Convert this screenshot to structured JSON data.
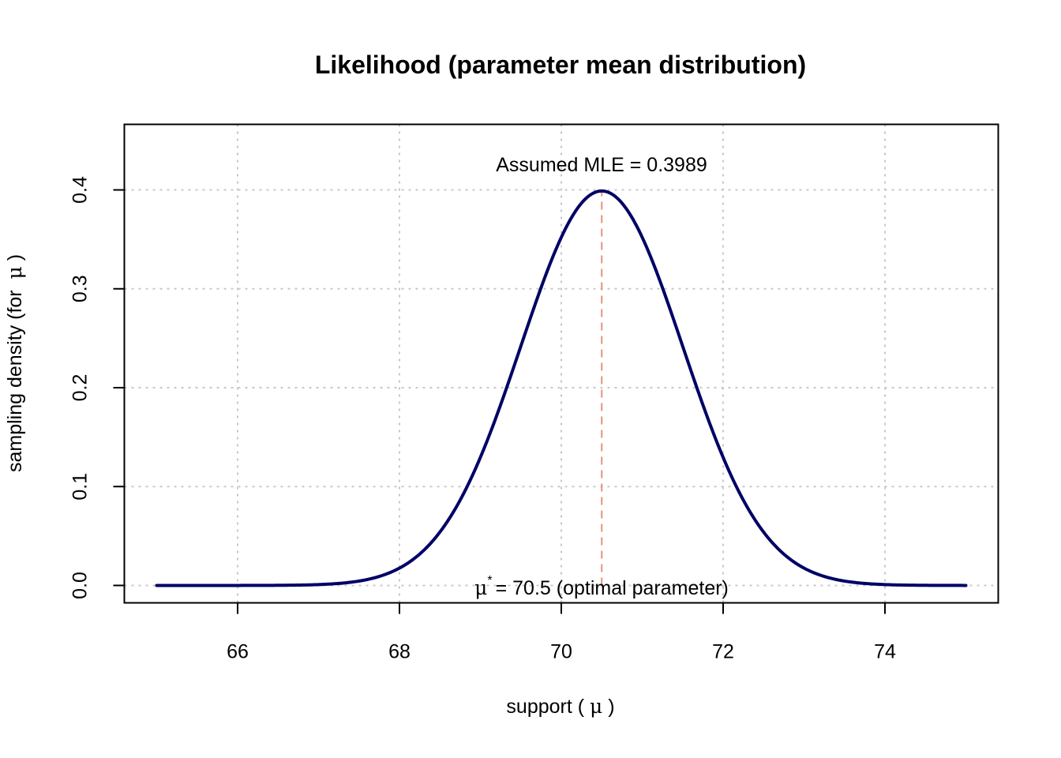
{
  "chart_data": {
    "type": "line",
    "title": "Likelihood (parameter mean distribution)",
    "xlabel": {
      "prefix": "support ( ",
      "symbol": "μ",
      "suffix": " )"
    },
    "ylabel": {
      "prefix": "sampling density (for  ",
      "symbol": "μ",
      "suffix": " )"
    },
    "xlim": [
      64.6,
      75.4
    ],
    "ylim": [
      -0.0176,
      0.4663
    ],
    "x_ticks": [
      66,
      68,
      70,
      72,
      74
    ],
    "y_ticks": [
      0.0,
      0.1,
      0.2,
      0.3,
      0.4
    ],
    "x_tick_labels": [
      "66",
      "68",
      "70",
      "72",
      "74"
    ],
    "y_tick_labels": [
      "0.0",
      "0.1",
      "0.2",
      "0.3",
      "0.4"
    ],
    "grid": true,
    "series": [
      {
        "distribution": "normal",
        "mean": 70.5,
        "sd": 1,
        "x_range": [
          65,
          75
        ],
        "color": "#000066"
      }
    ],
    "reference_line": {
      "x": 70.5,
      "y_from": 0,
      "y_to": 0.3989,
      "color": "#e8907a",
      "style": "dashed"
    },
    "annotations": {
      "top": "Assumed MLE = 0.3989",
      "bottom_symbol": "μ",
      "bottom_superscript": "*",
      "bottom_text": "= 70.5 (optimal parameter)"
    }
  }
}
